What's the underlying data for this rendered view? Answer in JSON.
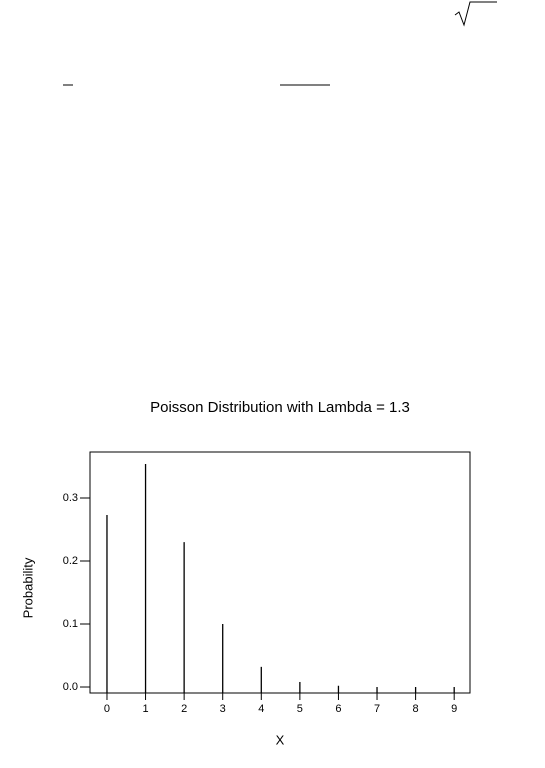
{
  "chart_data": {
    "type": "spike",
    "title": "Poisson Distribution with Lambda = 1.3",
    "x_label": "X",
    "y_label": "Probability",
    "x": [
      0,
      1,
      2,
      3,
      4,
      5,
      6,
      7,
      8,
      9
    ],
    "values": [
      0.273,
      0.354,
      0.23,
      0.1,
      0.032,
      0.008,
      0.002,
      0.0,
      0.0,
      0.0
    ],
    "color": "#000000",
    "xlim": [
      -0.44,
      9.41
    ],
    "xticks": [
      0,
      1,
      2,
      3,
      4,
      5,
      6,
      7,
      8,
      9
    ],
    "ylim": [
      -0.0095,
      0.373
    ],
    "yticks": [
      {
        "value": 0,
        "label": "0.0"
      },
      0.1,
      0.2,
      0.3
    ]
  }
}
